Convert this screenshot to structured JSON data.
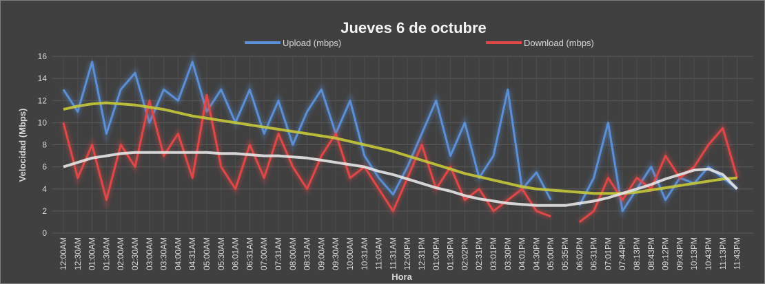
{
  "chart_data": {
    "type": "line",
    "title": "Jueves 6 de octubre",
    "y_label": "Velocidad (Mbps)",
    "x_label": "Hora",
    "categories": [
      "12:00AM",
      "12:30AM",
      "01:00AM",
      "01:30AM",
      "02:00AM",
      "02:30AM",
      "03:00AM",
      "03:30AM",
      "04:00AM",
      "04:31AM",
      "05:00AM",
      "05:30AM",
      "06:01AM",
      "06:31AM",
      "07:00AM",
      "07:31AM",
      "08:00AM",
      "08:31AM",
      "09:00AM",
      "09:30AM",
      "10:00AM",
      "10:31AM",
      "11:03AM",
      "11:31AM",
      "12:00PM",
      "12:31PM",
      "01:00PM",
      "01:30PM",
      "02:02PM",
      "02:31PM",
      "03:01PM",
      "03:30PM",
      "04:01PM",
      "04:30PM",
      "05:00PM",
      "05:35PM",
      "06:02PM",
      "06:31PM",
      "07:01PM",
      "07:44PM",
      "08:13PM",
      "08:43PM",
      "09:12PM",
      "09:43PM",
      "10:13PM",
      "10:43PM",
      "11:13PM",
      "11:43PM"
    ],
    "series": [
      {
        "name": "Upload (mbps)",
        "color": "#5b8fd6",
        "values": [
          13,
          11,
          15.5,
          9,
          13,
          14.5,
          10,
          13,
          12,
          15.5,
          11,
          13,
          10,
          13,
          9,
          12,
          8,
          11,
          13,
          9,
          12,
          7,
          5,
          3.5,
          6,
          9,
          12,
          7,
          10,
          5,
          7,
          13,
          4,
          5.5,
          3,
          null,
          2.5,
          5,
          10,
          2,
          4,
          6,
          3,
          5,
          4.5,
          6,
          5,
          4
        ],
        "trend": {
          "color": "#c5c83a",
          "values": [
            11.2,
            11.5,
            11.7,
            11.8,
            11.7,
            11.6,
            11.4,
            11.2,
            10.9,
            10.6,
            10.4,
            10.2,
            10.0,
            9.8,
            9.6,
            9.4,
            9.2,
            9.0,
            8.8,
            8.6,
            8.3,
            8.0,
            7.7,
            7.4,
            7.0,
            6.6,
            6.2,
            5.8,
            5.4,
            5.1,
            4.8,
            4.5,
            4.2,
            4.0,
            3.9,
            3.8,
            3.7,
            3.6,
            3.6,
            3.6,
            3.7,
            3.9,
            4.1,
            4.3,
            4.5,
            4.7,
            4.9,
            5.0
          ]
        }
      },
      {
        "name": "Download (mbps)",
        "color": "#e04848",
        "values": [
          10,
          5,
          8,
          3,
          8,
          6,
          12,
          7,
          9,
          5,
          12.5,
          6,
          4,
          8,
          5,
          9,
          6,
          4,
          7,
          9,
          5,
          6,
          4,
          2,
          5,
          8,
          4,
          6,
          3,
          4,
          2,
          3,
          4,
          2,
          1.5,
          null,
          1,
          2,
          5,
          3,
          5,
          4,
          7,
          5,
          6,
          8,
          9.5,
          5
        ],
        "trend": {
          "color": "#e6e6e6",
          "values": [
            6.0,
            6.4,
            6.8,
            7.0,
            7.2,
            7.3,
            7.3,
            7.3,
            7.3,
            7.3,
            7.3,
            7.2,
            7.2,
            7.1,
            7.0,
            7.0,
            6.9,
            6.8,
            6.6,
            6.4,
            6.2,
            6.0,
            5.6,
            5.3,
            4.9,
            4.5,
            4.1,
            3.8,
            3.4,
            3.1,
            2.9,
            2.7,
            2.6,
            2.5,
            2.5,
            2.5,
            2.7,
            2.9,
            3.2,
            3.6,
            4.0,
            4.4,
            4.9,
            5.3,
            5.7,
            5.8,
            5.3,
            4.0
          ]
        }
      }
    ],
    "ylim": [
      0,
      16
    ],
    "yticks": [
      0,
      2,
      4,
      6,
      8,
      10,
      12,
      14,
      16
    ],
    "grid": true,
    "legend": "top"
  }
}
